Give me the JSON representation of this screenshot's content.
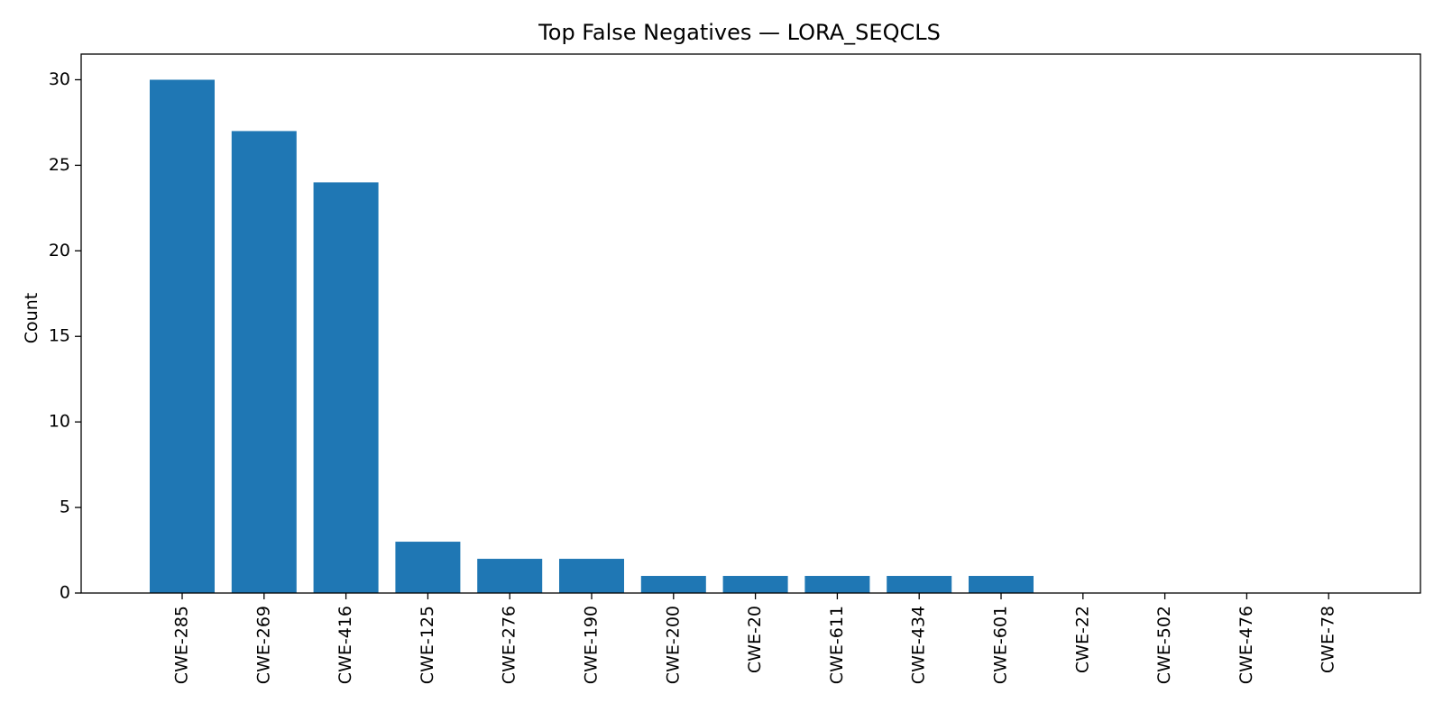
{
  "chart_data": {
    "type": "bar",
    "title": "Top False Negatives — LORA_SEQCLS",
    "xlabel": "",
    "ylabel": "Count",
    "categories": [
      "CWE-285",
      "CWE-269",
      "CWE-416",
      "CWE-125",
      "CWE-276",
      "CWE-190",
      "CWE-200",
      "CWE-20",
      "CWE-611",
      "CWE-434",
      "CWE-601",
      "CWE-22",
      "CWE-502",
      "CWE-476",
      "CWE-78"
    ],
    "values": [
      30,
      27,
      24,
      3,
      2,
      2,
      1,
      1,
      1,
      1,
      1,
      0,
      0,
      0,
      0
    ],
    "ylim": [
      0,
      31.5
    ],
    "yticks": [
      0,
      5,
      10,
      15,
      20,
      25,
      30
    ],
    "bar_color": "#1f77b4",
    "grid": false,
    "legend": "none"
  }
}
